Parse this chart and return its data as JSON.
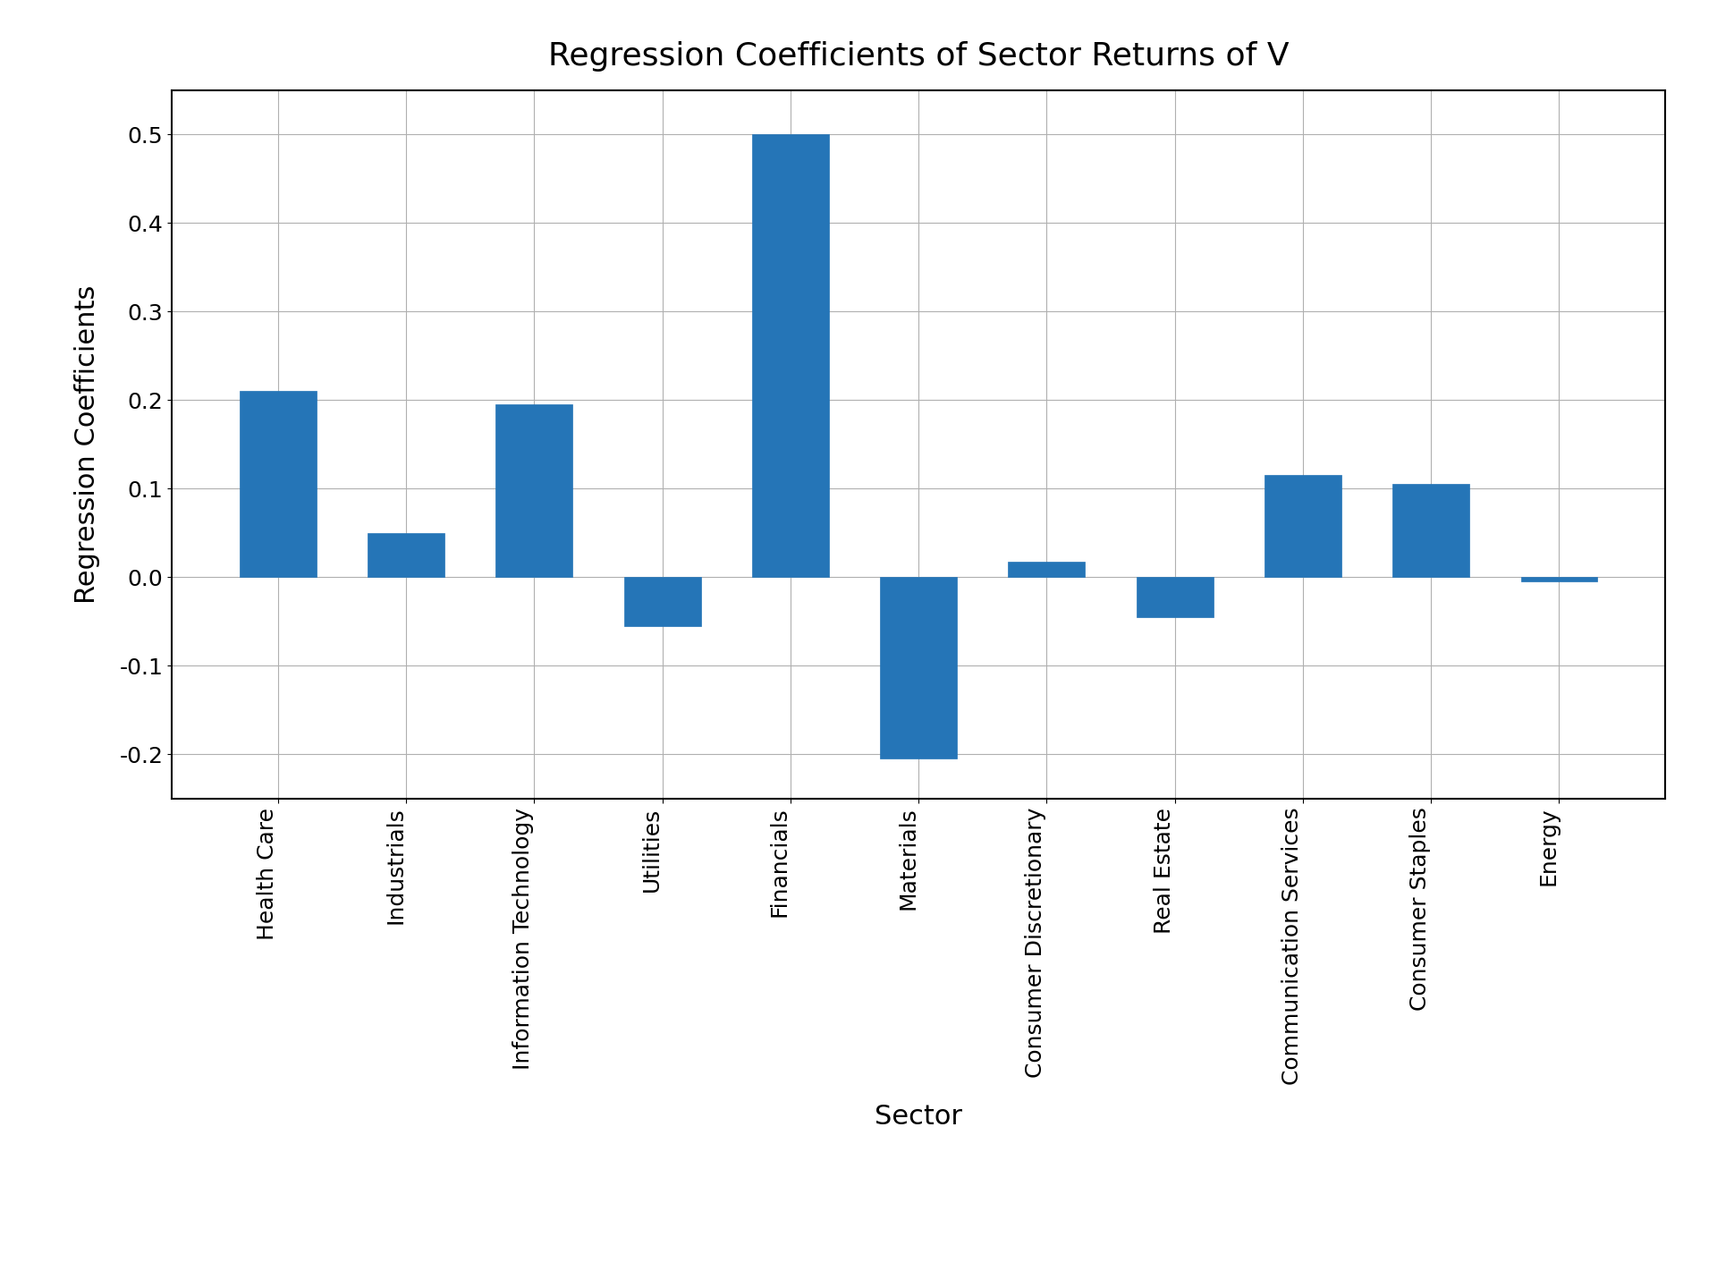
{
  "categories": [
    "Health Care",
    "Industrials",
    "Information Technology",
    "Utilities",
    "Financials",
    "Materials",
    "Consumer Discretionary",
    "Real Estate",
    "Communication Services",
    "Consumer Staples",
    "Energy"
  ],
  "values": [
    0.21,
    0.05,
    0.195,
    -0.055,
    0.5,
    -0.205,
    0.017,
    -0.045,
    0.115,
    0.105,
    -0.005
  ],
  "bar_color": "#2575b7",
  "bar_edgecolor": "#2575b7",
  "title": "Regression Coefficients of Sector Returns of V",
  "xlabel": "Sector",
  "ylabel": "Regression Coefficients",
  "ylim": [
    -0.25,
    0.55
  ],
  "yticks": [
    -0.2,
    -0.1,
    0.0,
    0.1,
    0.2,
    0.3,
    0.4,
    0.5
  ],
  "title_fontsize": 26,
  "label_fontsize": 22,
  "tick_fontsize": 18,
  "xtick_rotation": 90,
  "grid": true,
  "background_color": "#ffffff",
  "figsize": [
    19.2,
    14.4
  ],
  "dpi": 100
}
